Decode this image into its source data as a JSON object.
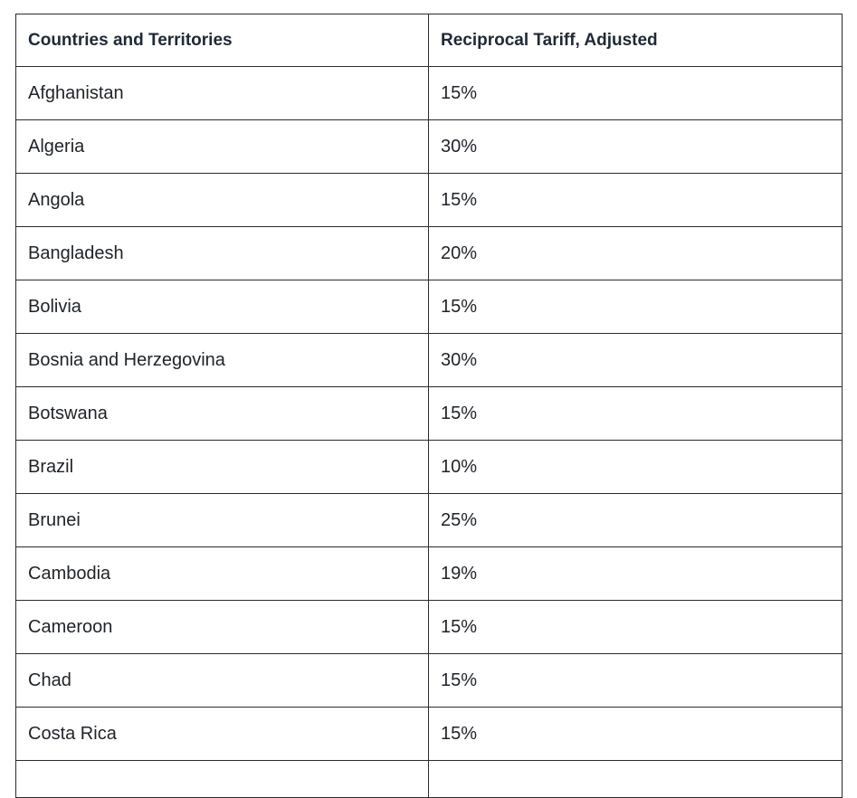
{
  "table": {
    "headers": [
      "Countries and Territories",
      "Reciprocal Tariff, Adjusted"
    ],
    "rows": [
      [
        "Afghanistan",
        "15%"
      ],
      [
        "Algeria",
        "30%"
      ],
      [
        "Angola",
        "15%"
      ],
      [
        "Bangladesh",
        "20%"
      ],
      [
        "Bolivia",
        "15%"
      ],
      [
        "Bosnia and Herzegovina",
        "30%"
      ],
      [
        "Botswana",
        "15%"
      ],
      [
        "Brazil",
        "10%"
      ],
      [
        "Brunei",
        "25%"
      ],
      [
        "Cambodia",
        "19%"
      ],
      [
        "Cameroon",
        "15%"
      ],
      [
        "Chad",
        "15%"
      ],
      [
        "Costa Rica",
        "15%"
      ]
    ]
  }
}
